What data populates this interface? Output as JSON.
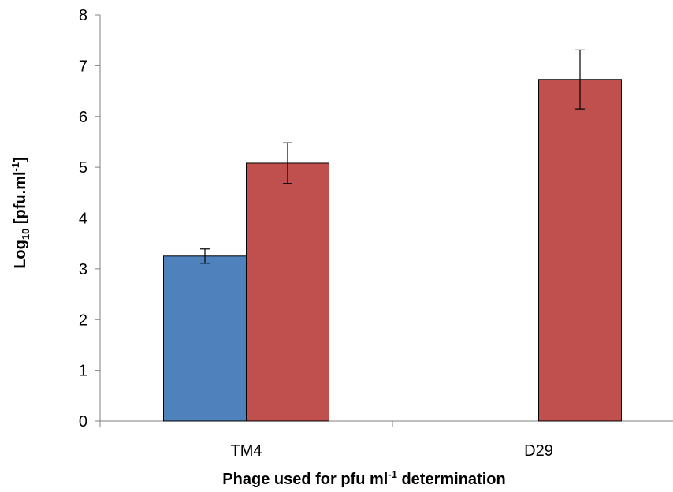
{
  "chart_data": {
    "type": "bar",
    "title": "",
    "xlabel": {
      "before": "Phage used for pfu ml",
      "sup": "-1",
      "after": " determination"
    },
    "ylabel": {
      "base": "Log",
      "sub": "10",
      "mid": " [pfu.ml",
      "sup": "-1",
      "end": "]"
    },
    "ylim": [
      0,
      8
    ],
    "yticks": [
      0,
      1,
      2,
      3,
      4,
      5,
      6,
      7,
      8
    ],
    "grid": false,
    "legend": "none",
    "categories": [
      "TM4",
      "D29"
    ],
    "series": [
      {
        "color": "#4F81BD",
        "values": [
          3.25,
          null
        ],
        "errors": [
          0.14,
          null
        ]
      },
      {
        "color": "#C0504D",
        "values": [
          5.08,
          6.73
        ],
        "errors": [
          0.4,
          0.58
        ]
      }
    ]
  }
}
